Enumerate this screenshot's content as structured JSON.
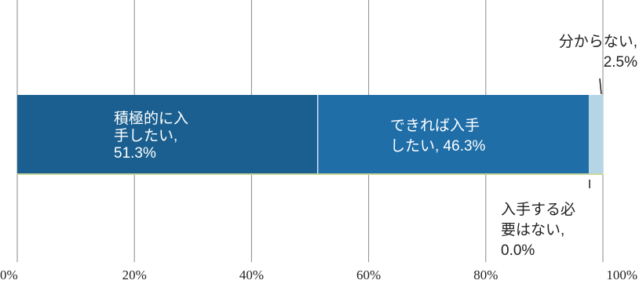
{
  "chart_data": {
    "type": "bar",
    "orientation": "horizontal",
    "stacked": true,
    "xlim": [
      0,
      100
    ],
    "x_ticks": [
      "0%",
      "20%",
      "40%",
      "60%",
      "80%",
      "100%"
    ],
    "grid": true,
    "series": [
      {
        "name": "積極的に入手したい",
        "value": 51.3,
        "color": "#1a5f8f",
        "label_lines": [
          "積極的に入",
          "手したい,",
          "51.3%"
        ]
      },
      {
        "name": "できれば入手したい",
        "value": 46.3,
        "color": "#1f6ea8",
        "label_lines": [
          "できれば入手",
          "したい, 46.3%"
        ]
      },
      {
        "name": "入手する必要はない",
        "value": 0.0,
        "color": "#7ea6c4",
        "label_lines": [
          "入手する必",
          "要はない,",
          "0.0%"
        ]
      },
      {
        "name": "分からない",
        "value": 2.5,
        "color": "#b5d5e6",
        "label_lines": [
          "分からない,",
          "2.5%"
        ]
      }
    ]
  }
}
